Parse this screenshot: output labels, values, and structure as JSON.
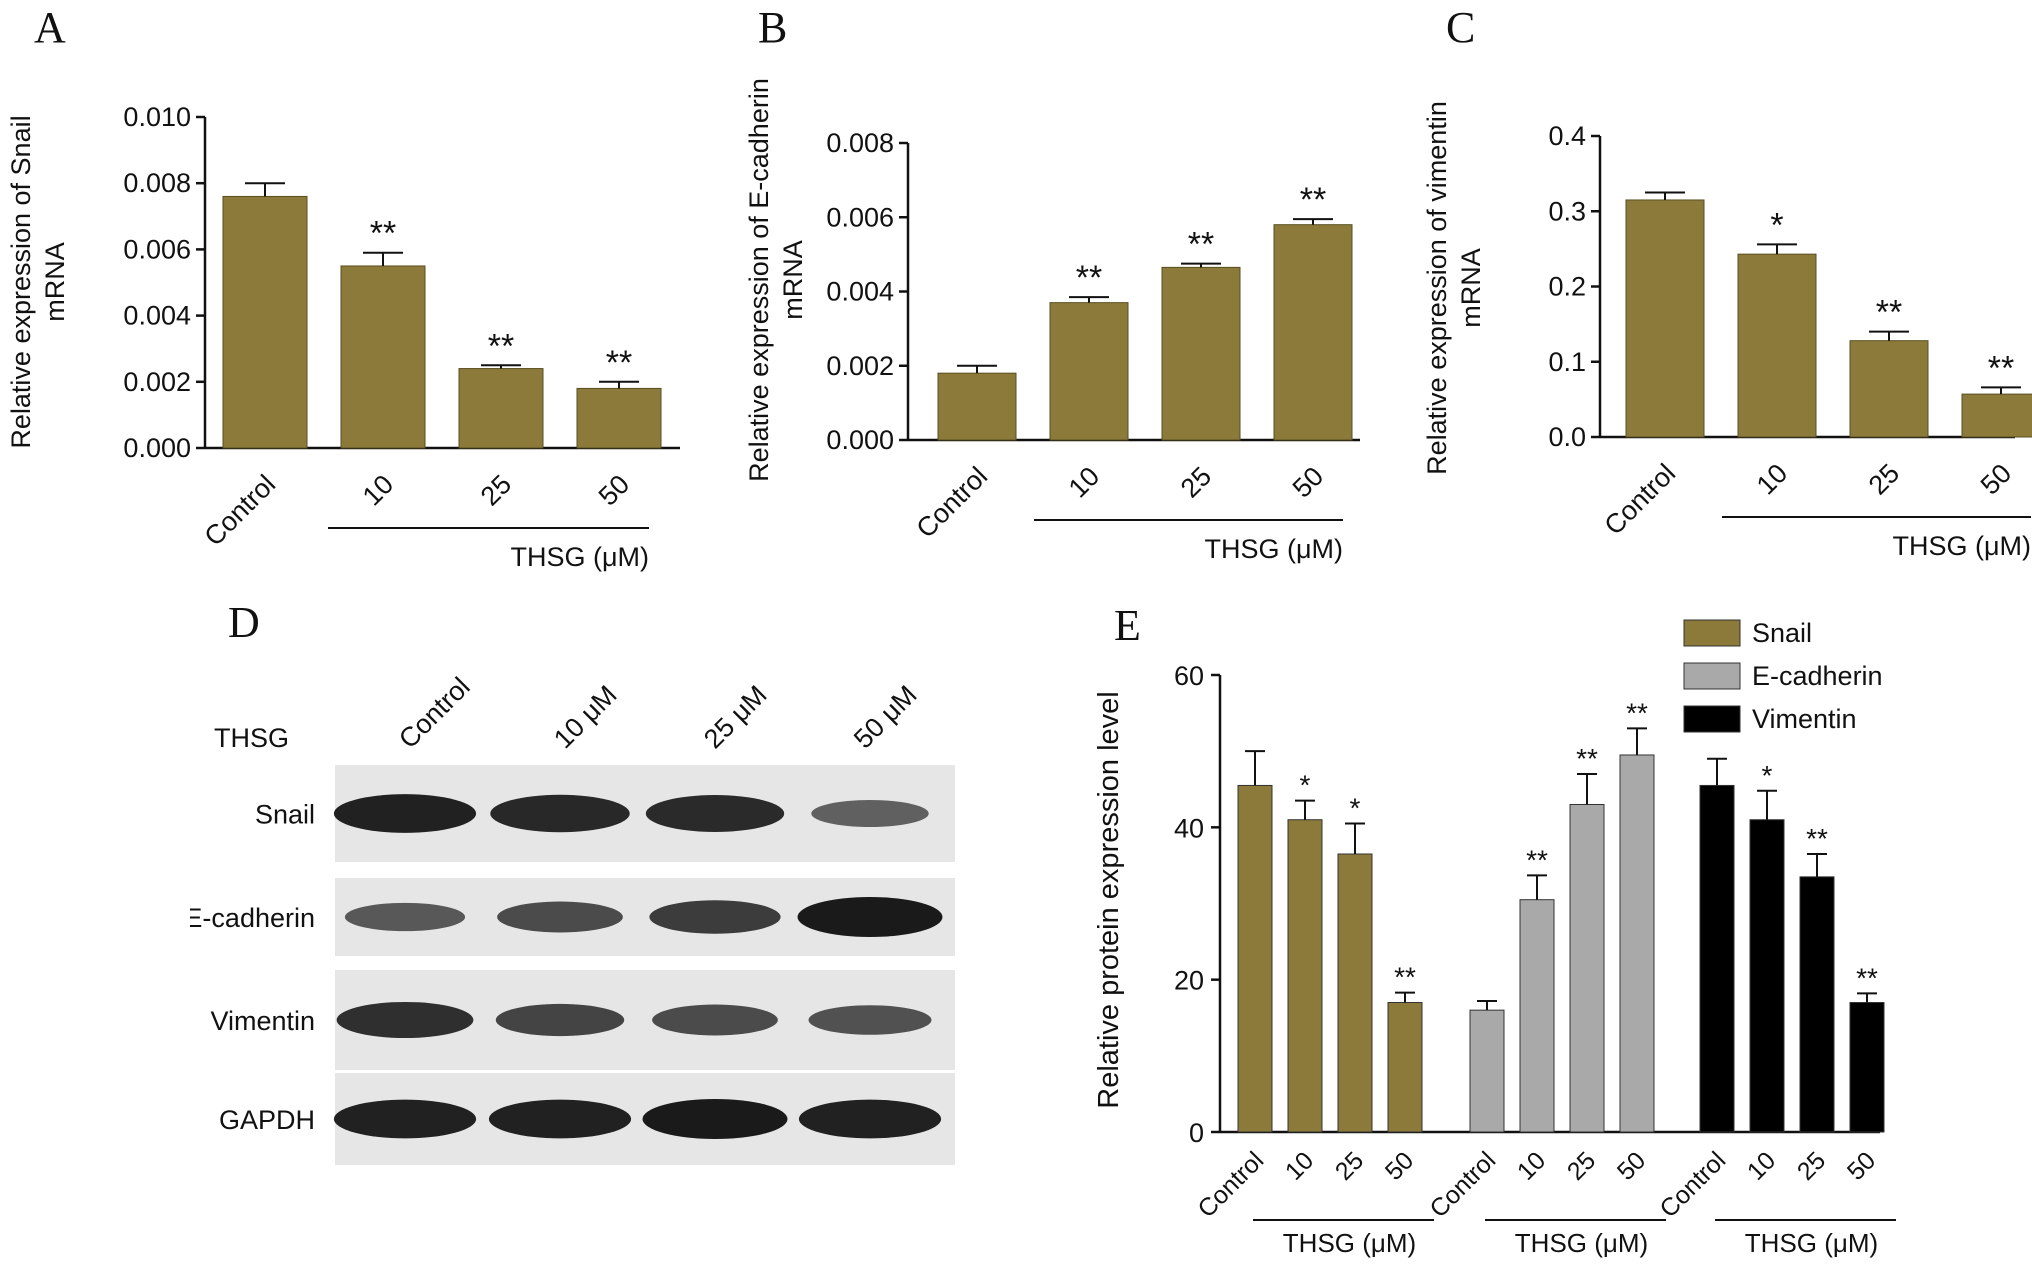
{
  "colors": {
    "snail": "#8B7A3A",
    "ecadherin": "#A9A9A9",
    "vimentin": "#000000",
    "axis": "#111111"
  },
  "panels": {
    "A": {
      "letter": "A"
    },
    "B": {
      "letter": "B"
    },
    "C": {
      "letter": "C"
    },
    "D": {
      "letter": "D"
    },
    "E": {
      "letter": "E"
    }
  },
  "chart_data": [
    {
      "id": "A",
      "type": "bar",
      "title": "",
      "ylabel_lines": [
        "Relative expression of  Snail",
        "mRNA"
      ],
      "ylim": [
        0,
        0.01
      ],
      "yticks": [
        "0.000",
        "0.002",
        "0.004",
        "0.006",
        "0.008",
        "0.010"
      ],
      "categories": [
        "Control",
        "10",
        "25",
        "50"
      ],
      "values": [
        0.0076,
        0.0055,
        0.0024,
        0.0018
      ],
      "errors": [
        0.0004,
        0.0004,
        0.0001,
        0.0002
      ],
      "significance": [
        "",
        "**",
        "**",
        "**"
      ],
      "group_label": "THSG (μM)",
      "color": "#8B7A3A"
    },
    {
      "id": "B",
      "type": "bar",
      "title": "",
      "ylabel_lines": [
        "Relative expression of E-cadherin",
        "mRNA"
      ],
      "ylim": [
        0,
        0.008
      ],
      "yticks": [
        "0.000",
        "0.002",
        "0.004",
        "0.006",
        "0.008"
      ],
      "categories": [
        "Control",
        "10",
        "25",
        "50"
      ],
      "values": [
        0.0018,
        0.0037,
        0.00465,
        0.0058
      ],
      "errors": [
        0.0002,
        0.00015,
        0.0001,
        0.00015
      ],
      "significance": [
        "",
        "**",
        "**",
        "**"
      ],
      "group_label": "THSG (μM)",
      "color": "#8B7A3A"
    },
    {
      "id": "C",
      "type": "bar",
      "title": "",
      "ylabel_lines": [
        "Relative expression of vimentin",
        "mRNA"
      ],
      "ylim": [
        0,
        0.4
      ],
      "yticks": [
        "0.0",
        "0.1",
        "0.2",
        "0.3",
        "0.4"
      ],
      "categories": [
        "Control",
        "10",
        "25",
        "50"
      ],
      "values": [
        0.315,
        0.243,
        0.128,
        0.057
      ],
      "errors": [
        0.01,
        0.013,
        0.012,
        0.009
      ],
      "significance": [
        "",
        "*",
        "**",
        "**"
      ],
      "group_label": "THSG (μM)",
      "color": "#8B7A3A"
    },
    {
      "id": "E",
      "type": "bar",
      "title": "",
      "ylabel": "Relative protein expression level",
      "ylim": [
        0,
        60
      ],
      "yticks": [
        "0",
        "20",
        "40",
        "60"
      ],
      "categories": [
        "Control",
        "10",
        "25",
        "50"
      ],
      "group_label": "THSG (μM)",
      "legend_position": "top-right",
      "series": [
        {
          "name": "Snail",
          "color": "#8B7A3A",
          "values": [
            45.5,
            41,
            36.5,
            17
          ],
          "errors": [
            4.5,
            2.5,
            4,
            1.3
          ],
          "significance": [
            "",
            "*",
            "*",
            "**"
          ]
        },
        {
          "name": "E-cadherin",
          "color": "#A9A9A9",
          "values": [
            16,
            30.5,
            43,
            49.5
          ],
          "errors": [
            1.2,
            3.2,
            4,
            3.5
          ],
          "significance": [
            "",
            "**",
            "**",
            "**"
          ]
        },
        {
          "name": "Vimentin",
          "color": "#000000",
          "values": [
            45.5,
            41,
            33.5,
            17
          ],
          "errors": [
            3.5,
            3.8,
            3,
            1.2
          ],
          "significance": [
            "",
            "*",
            "**",
            "**"
          ]
        }
      ]
    }
  ],
  "western_blot": {
    "treatment_label": "THSG",
    "lanes": [
      "Control",
      "10 μM",
      "25 μM",
      "50 μM"
    ],
    "rows": [
      {
        "name": "Snail",
        "intensities": [
          0.95,
          0.9,
          0.88,
          0.5
        ]
      },
      {
        "name": "E-cadherin",
        "intensities": [
          0.55,
          0.65,
          0.75,
          1.0
        ]
      },
      {
        "name": "Vimentin",
        "intensities": [
          0.85,
          0.7,
          0.65,
          0.6
        ]
      },
      {
        "name": "GAPDH",
        "intensities": [
          0.95,
          0.95,
          1.0,
          0.95
        ]
      }
    ]
  }
}
